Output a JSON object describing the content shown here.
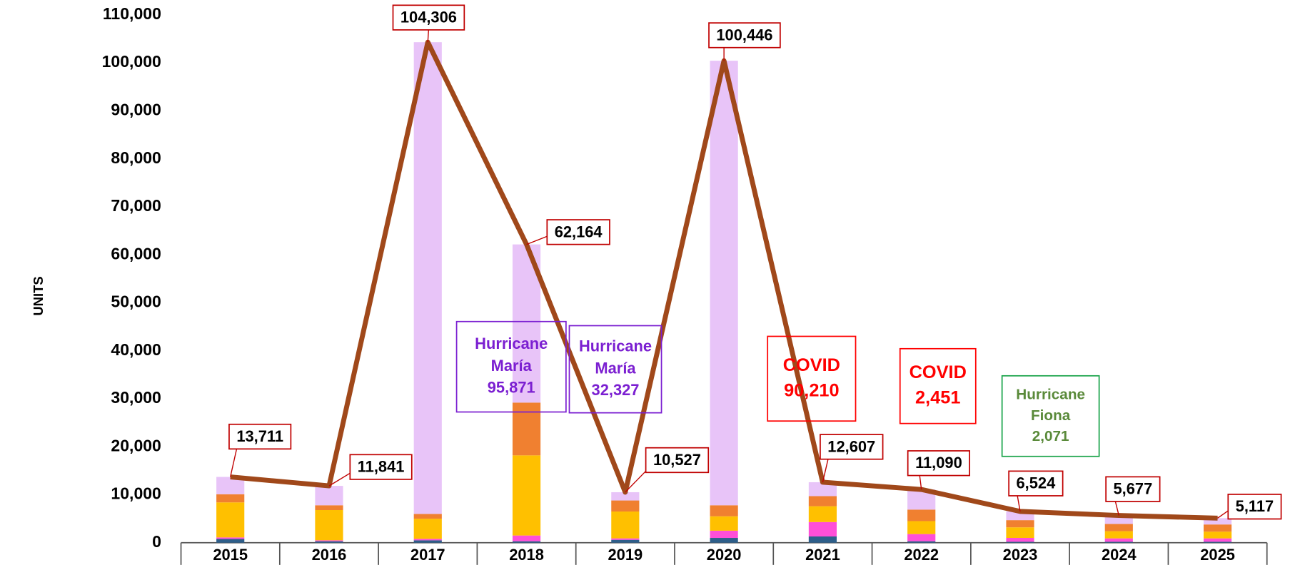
{
  "chart_data": {
    "type": "bar",
    "stacked": true,
    "y_label": "UNITS",
    "categories": [
      "2015",
      "2016",
      "2017",
      "2018",
      "2019",
      "2020",
      "2021",
      "2022",
      "2023",
      "2024",
      "2025"
    ],
    "series": [
      {
        "color": "#2e5f8a",
        "values": [
          800,
          300,
          500,
          300,
          600,
          1000,
          1300,
          300,
          200,
          200,
          200
        ]
      },
      {
        "color": "#ff4fd8",
        "values": [
          300,
          200,
          300,
          1200,
          300,
          1500,
          3000,
          1500,
          800,
          700,
          700
        ]
      },
      {
        "color": "#ffc000",
        "values": [
          7300,
          6300,
          4200,
          16700,
          5600,
          3000,
          3300,
          2700,
          2200,
          1500,
          1400
        ]
      },
      {
        "color": "#f08030",
        "values": [
          1700,
          1000,
          1000,
          11000,
          2300,
          2300,
          2100,
          2400,
          1500,
          1500,
          1500
        ]
      },
      {
        "color": "#e8c4f8",
        "values": [
          3611,
          4041,
          98306,
          32964,
          1727,
          92646,
          2907,
          4190,
          1824,
          1777,
          1317
        ]
      },
      {
        "type": "line",
        "color": "#a0481a",
        "values": [
          13711,
          11841,
          104306,
          62164,
          10527,
          100446,
          12607,
          11090,
          6524,
          5677,
          5117
        ],
        "value_labels": [
          "13,711",
          "11,841",
          "104,306",
          "62,164",
          "10,527",
          "100,446",
          "12,607",
          "11,090",
          "6,524",
          "5,677",
          "5,117"
        ]
      }
    ],
    "ylim": [
      0,
      110000
    ],
    "yticks": [
      0,
      {
        "value": 10000,
        "label": "10,000"
      },
      {
        "value": 20000,
        "label": "20,000"
      },
      {
        "value": 30000,
        "label": "30,000"
      },
      {
        "value": 40000,
        "label": "40,000"
      },
      {
        "value": 50000,
        "label": "50,000"
      },
      {
        "value": 60000,
        "label": "60,000"
      },
      {
        "value": 70000,
        "label": "70,000"
      },
      {
        "value": 80000,
        "label": "80,000"
      },
      {
        "value": 90000,
        "label": "90,000"
      },
      {
        "value": 100000,
        "label": "100,000"
      },
      {
        "value": 110000,
        "label": "110,000"
      }
    ],
    "grid": false,
    "annotations": [
      {
        "text": [
          "Hurricane",
          "María",
          "95,871"
        ],
        "color": "#7b1fd1",
        "border": "#7b1fd1"
      },
      {
        "text": [
          "Hurricane",
          "María",
          "32,327"
        ],
        "color": "#7b1fd1",
        "border": "#7b1fd1"
      },
      {
        "text": [
          "COVID",
          "90,210"
        ],
        "color": "#ff0000",
        "border": "#ff0000"
      },
      {
        "text": [
          "COVID",
          "2,451"
        ],
        "color": "#ff0000",
        "border": "#ff0000"
      },
      {
        "text": [
          "Hurricane",
          "Fiona",
          "2,071"
        ],
        "color": "#5a8a3a",
        "border": "#1aa34a"
      }
    ]
  }
}
